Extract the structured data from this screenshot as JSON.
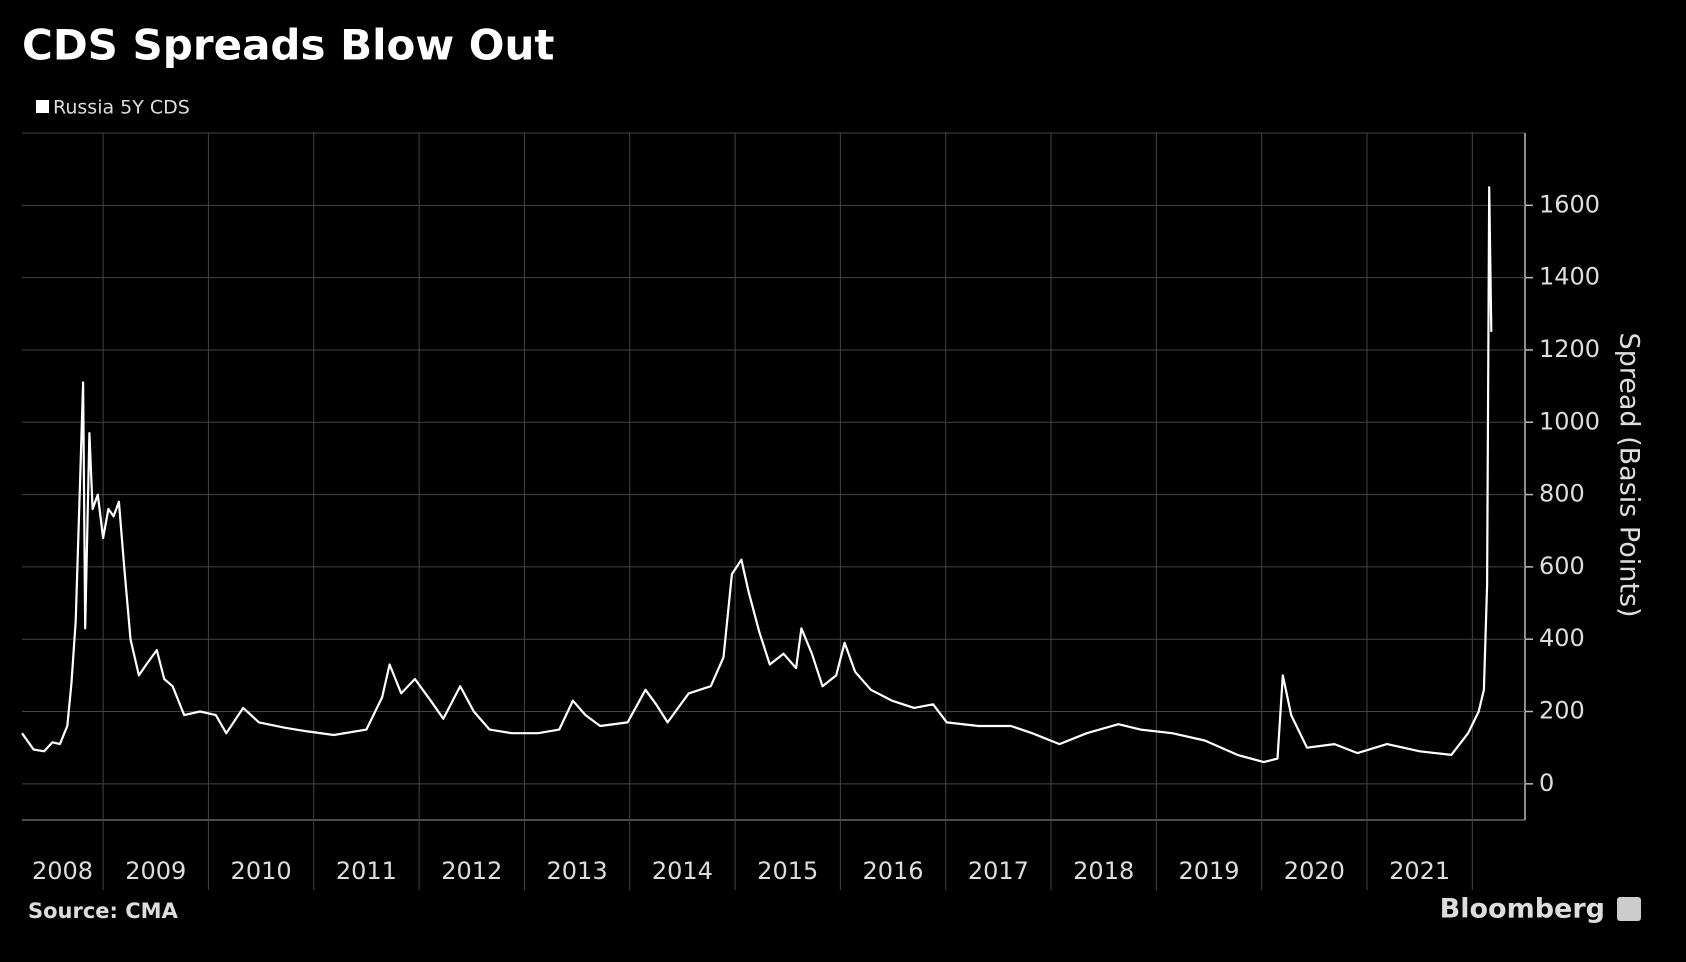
{
  "chart_data": {
    "type": "line",
    "title": "CDS Spreads Blow Out",
    "y_label": "Spread (Basis Points)",
    "source": "Source: CMA",
    "brand": "Bloomberg",
    "x": [
      2008.23,
      2008.34,
      2008.44,
      2008.52,
      2008.59,
      2008.66,
      2008.7,
      2008.74,
      2008.78,
      2008.81,
      2008.83,
      2008.87,
      2008.9,
      2008.95,
      2009.0,
      2009.05,
      2009.1,
      2009.15,
      2009.2,
      2009.26,
      2009.34,
      2009.41,
      2009.51,
      2009.58,
      2009.66,
      2009.77,
      2009.92,
      2010.07,
      2010.17,
      2010.33,
      2010.48,
      2010.73,
      2010.94,
      2011.19,
      2011.5,
      2011.65,
      2011.72,
      2011.83,
      2011.96,
      2012.11,
      2012.23,
      2012.39,
      2012.52,
      2012.67,
      2012.88,
      2013.13,
      2013.33,
      2013.46,
      2013.58,
      2013.72,
      2013.98,
      2014.15,
      2014.25,
      2014.36,
      2014.56,
      2014.77,
      2014.89,
      2014.97,
      2015.06,
      2015.13,
      2015.23,
      2015.33,
      2015.46,
      2015.58,
      2015.63,
      2015.73,
      2015.83,
      2015.96,
      2016.04,
      2016.14,
      2016.29,
      2016.49,
      2016.7,
      2016.88,
      2017.01,
      2017.31,
      2017.62,
      2017.82,
      2018.08,
      2018.34,
      2018.64,
      2018.85,
      2019.15,
      2019.46,
      2019.77,
      2020.02,
      2020.15,
      2020.2,
      2020.28,
      2020.43,
      2020.69,
      2020.91,
      2021.19,
      2021.5,
      2021.8,
      2021.96,
      2022.06,
      2022.11,
      2022.14,
      2022.16,
      2022.18
    ],
    "series": [
      {
        "name": "Russia 5Y CDS",
        "color": "#ffffff",
        "values": [
          140,
          95,
          90,
          115,
          110,
          160,
          280,
          450,
          820,
          1110,
          430,
          970,
          760,
          800,
          680,
          760,
          740,
          780,
          600,
          400,
          300,
          330,
          370,
          290,
          270,
          190,
          200,
          190,
          140,
          210,
          170,
          155,
          145,
          135,
          150,
          240,
          330,
          250,
          290,
          230,
          180,
          270,
          200,
          150,
          140,
          140,
          150,
          230,
          190,
          160,
          170,
          260,
          220,
          170,
          250,
          270,
          350,
          580,
          620,
          530,
          420,
          330,
          360,
          320,
          430,
          360,
          270,
          300,
          390,
          310,
          260,
          230,
          210,
          220,
          170,
          160,
          160,
          140,
          110,
          140,
          165,
          150,
          140,
          120,
          80,
          60,
          70,
          300,
          190,
          100,
          110,
          85,
          110,
          90,
          80,
          140,
          200,
          260,
          550,
          1650,
          1250
        ]
      }
    ],
    "xlim": [
      2008.23,
      2022.5
    ],
    "xticks": [
      2008,
      2009,
      2010,
      2011,
      2012,
      2013,
      2014,
      2015,
      2016,
      2017,
      2018,
      2019,
      2020,
      2021
    ],
    "ylim": [
      -100,
      1800
    ],
    "yticks": [
      0,
      200,
      400,
      600,
      800,
      1000,
      1200,
      1400,
      1600
    ],
    "grid": true
  }
}
